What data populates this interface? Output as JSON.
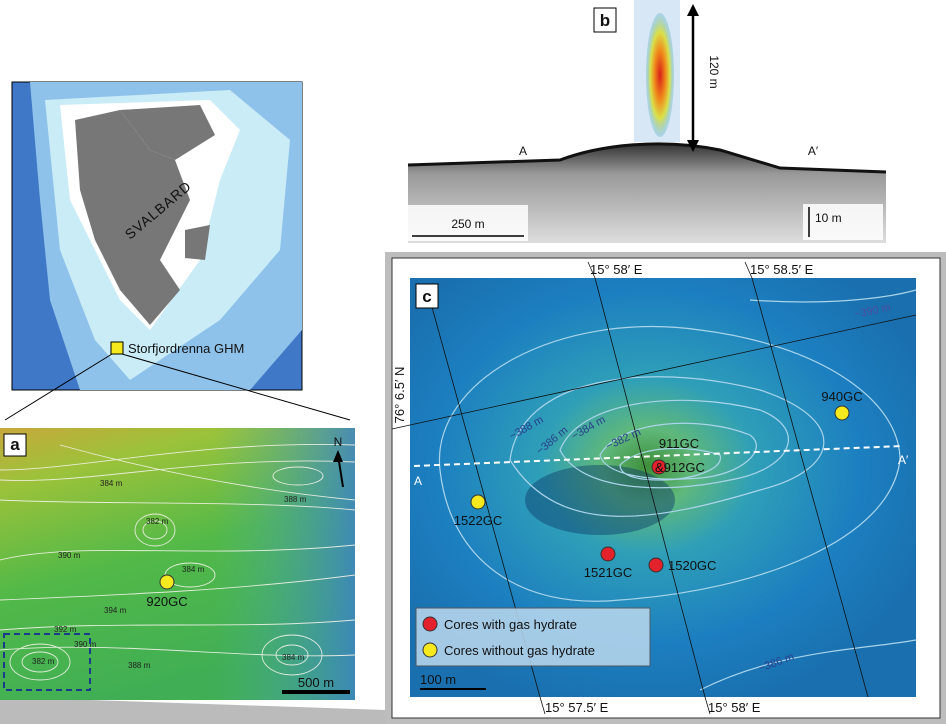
{
  "overview": {
    "region_label": "SVALBARD",
    "site_label": "Storfjordrenna GHM"
  },
  "panel_a": {
    "label": "a",
    "north": "N",
    "contours": [
      "384 m",
      "388 m",
      "382 m",
      "390 m",
      "384 m",
      "394 m",
      "392 m",
      "390 m",
      "388 m",
      "382 m",
      "384 m"
    ],
    "cores": [
      {
        "name": "920GC",
        "gas_hydrate": false
      }
    ],
    "scale_bar": "500 m"
  },
  "panel_b": {
    "label": "b",
    "plume_height": "120 m",
    "profile_start": "A",
    "profile_end": "A′",
    "scale_horizontal": "250 m",
    "scale_vertical": "10 m"
  },
  "panel_c": {
    "label": "c",
    "top_longitudes": [
      "15° 58′ E",
      "15° 58.5′ E"
    ],
    "bottom_longitudes": [
      "15° 57.5′ E",
      "15° 58′ E"
    ],
    "latitude": "76° 6.5′ N",
    "contours": [
      "−390 m",
      "−388 m",
      "−386 m",
      "−384 m",
      "−382 m",
      "−386 m"
    ],
    "profile_start": "A",
    "profile_end": "A′",
    "cores": [
      {
        "labels": [
          "911GC",
          "&912GC"
        ],
        "gas_hydrate": true
      },
      {
        "labels": [
          "940GC"
        ],
        "gas_hydrate": false
      },
      {
        "labels": [
          "1522GC"
        ],
        "gas_hydrate": false
      },
      {
        "labels": [
          "1521GC"
        ],
        "gas_hydrate": true
      },
      {
        "labels": [
          "1520GC"
        ],
        "gas_hydrate": true
      }
    ],
    "legend": [
      {
        "label": "Cores with gas hydrate",
        "color": "#e3222b"
      },
      {
        "label": "Cores without gas hydrate",
        "color": "#f6ea1e"
      }
    ],
    "scale_bar": "100 m"
  }
}
